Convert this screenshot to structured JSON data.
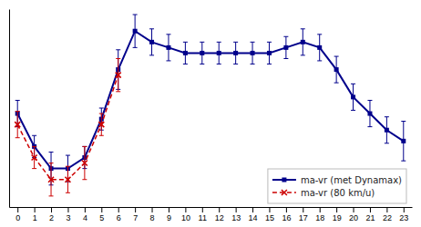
{
  "chart_data": {
    "type": "line",
    "series": [
      {
        "name": "ma-vr (met Dynamax)",
        "color": "#00008B",
        "marker": "square",
        "line_style": "solid",
        "x": [
          0,
          1,
          2,
          3,
          4,
          5,
          6,
          7,
          8,
          9,
          10,
          11,
          12,
          13,
          14,
          15,
          16,
          17,
          18,
          19,
          20,
          21,
          22,
          23
        ],
        "values": [
          67.5,
          64.5,
          62.5,
          62.5,
          63.5,
          67.0,
          71.5,
          75.0,
          74.0,
          73.5,
          73.0,
          73.0,
          73.0,
          73.0,
          73.0,
          73.0,
          73.5,
          74.0,
          73.5,
          71.5,
          69.0,
          67.5,
          66.0,
          65.0
        ],
        "errors": [
          1.2,
          1.0,
          1.5,
          1.2,
          1.0,
          1.0,
          1.8,
          1.5,
          1.2,
          1.2,
          1.0,
          1.0,
          1.0,
          1.0,
          1.0,
          1.0,
          1.0,
          1.2,
          1.2,
          1.2,
          1.2,
          1.2,
          1.2,
          1.8
        ]
      },
      {
        "name": "ma-vr (80 km/u)",
        "color": "#CC0000",
        "marker": "x",
        "line_style": "dashed",
        "x": [
          0,
          1,
          2,
          3,
          4,
          5,
          6
        ],
        "values": [
          66.5,
          63.5,
          61.5,
          61.5,
          63.0,
          66.5,
          71.0
        ],
        "errors": [
          1.2,
          1.0,
          1.5,
          1.2,
          1.5,
          1.0,
          1.5
        ]
      }
    ],
    "xlim": [
      -0.5,
      23.5
    ],
    "xticks": [
      0,
      1,
      2,
      3,
      4,
      5,
      6,
      7,
      8,
      9,
      10,
      11,
      12,
      13,
      14,
      15,
      16,
      17,
      18,
      19,
      20,
      21,
      22,
      23
    ],
    "ylim": [
      59,
      77
    ],
    "yticks": [],
    "grid": false,
    "legend": "lower right",
    "tick_labels": "x"
  }
}
